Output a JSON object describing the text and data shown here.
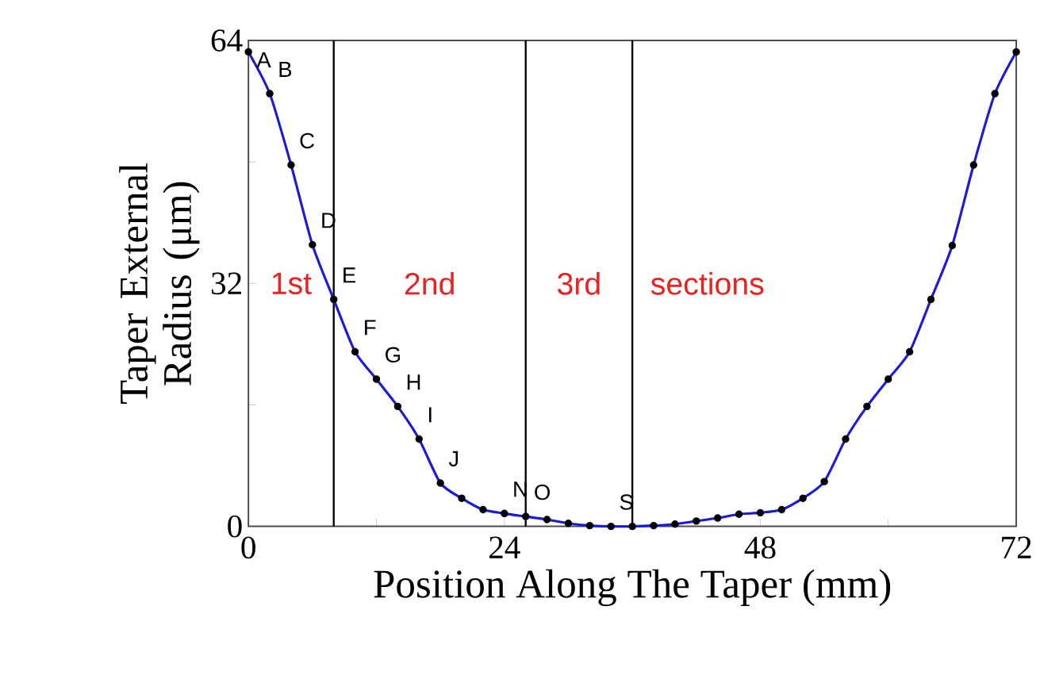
{
  "chart_data": {
    "type": "line",
    "xlabel": "Position Along The Taper (mm)",
    "ylabel": "Taper External Radius (μm)",
    "x": [
      0,
      2,
      4,
      6,
      8,
      10,
      12,
      14,
      16,
      18,
      20,
      22,
      24,
      26,
      28,
      30,
      32,
      34,
      36,
      38,
      40,
      42,
      44,
      46,
      48,
      50,
      52,
      54,
      56,
      58,
      60,
      62,
      64,
      66,
      68,
      70,
      72
    ],
    "series": [
      {
        "color": "#1a1adb",
        "values": [
          62.5,
          57,
          47.6,
          37.1,
          29.9,
          23,
          19.4,
          15.8,
          11.5,
          5.7,
          3.7,
          2.2,
          1.7,
          1.3,
          0.9,
          0.4,
          0.1,
          0,
          0,
          0.1,
          0.3,
          0.7,
          1.1,
          1.6,
          1.8,
          2.2,
          3.7,
          5.9,
          11.5,
          15.8,
          19.4,
          23,
          29.9,
          37,
          47.6,
          57,
          62.5
        ]
      }
    ],
    "marker": "circle",
    "line_style": "solid",
    "xlim": [
      0,
      72
    ],
    "ylim": [
      0,
      64
    ],
    "xticks": [
      0,
      {
        "value": 12,
        "label": null
      },
      24,
      {
        "value": 36,
        "label": null
      },
      48,
      {
        "value": 60,
        "label": null
      },
      72
    ],
    "yticks": [
      0,
      {
        "value": 16,
        "label": null
      },
      32,
      {
        "value": 48,
        "label": null
      },
      64
    ],
    "grid": false,
    "ref_lines": [
      {
        "axis": "x",
        "value": 8,
        "color": "#000000"
      },
      {
        "axis": "x",
        "value": 26,
        "color": "#000000"
      },
      {
        "axis": "x",
        "value": 36,
        "color": "#000000"
      }
    ],
    "annotations": [
      {
        "text": "A",
        "x": 0,
        "y": 62.5
      },
      {
        "text": "B",
        "x": 2,
        "y": 57
      },
      {
        "text": "C",
        "x": 4,
        "y": 47.6
      },
      {
        "text": "D",
        "x": 6,
        "y": 37.1
      },
      {
        "text": "E",
        "x": 8,
        "y": 29.9
      },
      {
        "text": "F",
        "x": 10,
        "y": 23
      },
      {
        "text": "G",
        "x": 12,
        "y": 19.4
      },
      {
        "text": "H",
        "x": 14,
        "y": 15.8
      },
      {
        "text": "I",
        "x": 16,
        "y": 11.5
      },
      {
        "text": "J",
        "x": 18,
        "y": 5.7
      },
      {
        "text": "N",
        "x": 24,
        "y": 1.7
      },
      {
        "text": "O",
        "x": 26,
        "y": 1.3
      },
      {
        "text": "S",
        "x": 34,
        "y": 0
      },
      "1st",
      "2nd",
      "3rd",
      "sections"
    ]
  }
}
